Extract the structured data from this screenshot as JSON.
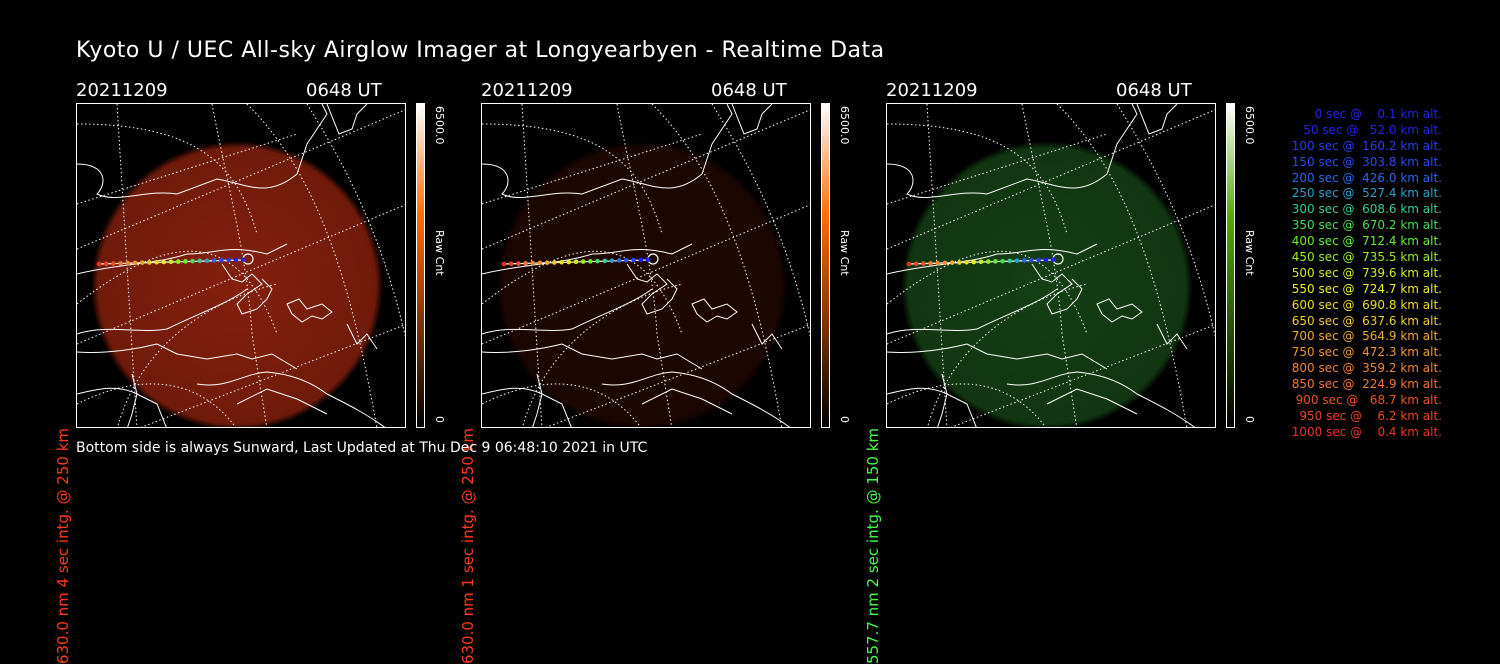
{
  "title": "Kyoto U / UEC All-sky Airglow Imager at Longyearbyen - Realtime Data",
  "footer": "Bottom side is always Sunward, Last Updated at Thu Dec  9 06:48:10 2021 in UTC",
  "panels": [
    {
      "date": "20211209",
      "time": "0648 UT",
      "ylabel": "630.0 nm 4 sec intg. @ 250 km",
      "label_color": "#ff3a1a",
      "colorbar_max": "6500.0",
      "colorbar_min": "0",
      "colorbar_unit": "Raw Cnt",
      "colorbar_top": "#ffffff",
      "colorbar_mid": "#ff6a00",
      "colorbar_bottom": "#000000",
      "glow_color": "#b02a10",
      "glow_intensity": 0.75
    },
    {
      "date": "20211209",
      "time": "0648 UT",
      "ylabel": "630.0 nm 1 sec intg. @ 250 km",
      "label_color": "#ff3a1a",
      "colorbar_max": "6500.0",
      "colorbar_min": "0",
      "colorbar_unit": "Raw Cnt",
      "colorbar_top": "#ffffff",
      "colorbar_mid": "#ff6a00",
      "colorbar_bottom": "#000000",
      "glow_color": "#5a1208",
      "glow_intensity": 0.35
    },
    {
      "date": "20211209",
      "time": "0648 UT",
      "ylabel": "557.7 nm 2 sec intg. @ 150 km",
      "label_color": "#44ff44",
      "colorbar_max": "6500.0",
      "colorbar_min": "0",
      "colorbar_unit": "Raw Cnt",
      "colorbar_top": "#ffffff",
      "colorbar_mid": "#55aa00",
      "colorbar_bottom": "#000000",
      "glow_color": "#1d5a1d",
      "glow_intensity": 0.7
    }
  ],
  "legend": [
    {
      "text": "   0 sec @    0.1 km alt.",
      "color": "#2222ee"
    },
    {
      "text": "  50 sec @   52.0 km alt.",
      "color": "#2222ee"
    },
    {
      "text": " 100 sec @  160.2 km alt.",
      "color": "#2a3cee"
    },
    {
      "text": " 150 sec @  303.8 km alt.",
      "color": "#2a4cee"
    },
    {
      "text": " 200 sec @  426.0 km alt.",
      "color": "#2a66ee"
    },
    {
      "text": " 250 sec @  527.4 km alt.",
      "color": "#2aa0c8"
    },
    {
      "text": " 300 sec @  608.6 km alt.",
      "color": "#33cc99"
    },
    {
      "text": " 350 sec @  670.2 km alt.",
      "color": "#44dd55"
    },
    {
      "text": " 400 sec @  712.4 km alt.",
      "color": "#66ee33"
    },
    {
      "text": " 450 sec @  735.5 km alt.",
      "color": "#99ee22"
    },
    {
      "text": " 500 sec @  739.6 km alt.",
      "color": "#ccee22"
    },
    {
      "text": " 550 sec @  724.7 km alt.",
      "color": "#eeee22"
    },
    {
      "text": " 600 sec @  690.8 km alt.",
      "color": "#eedd22"
    },
    {
      "text": " 650 sec @  637.6 km alt.",
      "color": "#eecc33"
    },
    {
      "text": " 700 sec @  564.9 km alt.",
      "color": "#eeaa33"
    },
    {
      "text": " 750 sec @  472.3 km alt.",
      "color": "#ee9933"
    },
    {
      "text": " 800 sec @  359.2 km alt.",
      "color": "#ee8833"
    },
    {
      "text": " 850 sec @  224.9 km alt.",
      "color": "#ee7733"
    },
    {
      "text": " 900 sec @   68.7 km alt.",
      "color": "#ee5522"
    },
    {
      "text": " 950 sec @    6.2 km alt.",
      "color": "#ee4422"
    },
    {
      "text": "1000 sec @    0.4 km alt.",
      "color": "#ee3322"
    }
  ]
}
